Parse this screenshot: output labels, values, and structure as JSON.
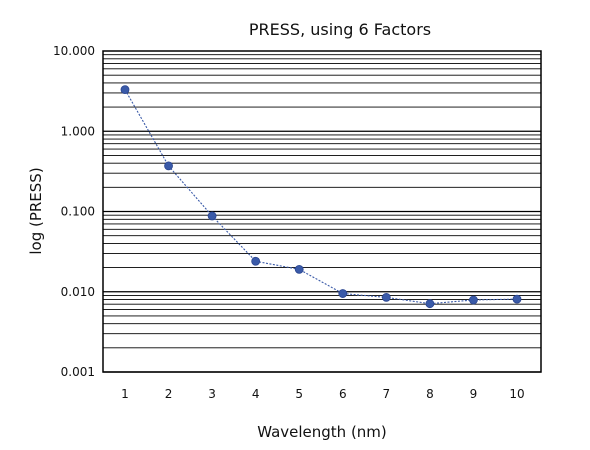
{
  "chart_data": {
    "type": "line",
    "title": "PRESS, using 6 Factors",
    "xlabel": "Wavelength (nm)",
    "ylabel": "log (PRESS)",
    "x": [
      1,
      2,
      3,
      4,
      5,
      6,
      7,
      8,
      9,
      10
    ],
    "x_tick_labels": [
      "1",
      "2",
      "3",
      "4",
      "5",
      "6",
      "7",
      "8",
      "9",
      "10"
    ],
    "y_scale": "log",
    "ylim": [
      0.001,
      10
    ],
    "y_tick_values": [
      0.001,
      0.01,
      0.1,
      1,
      10
    ],
    "y_tick_labels": [
      "0.001",
      "0.010",
      "0.100",
      "1.000",
      "10.000"
    ],
    "grid": true,
    "series": [
      {
        "values": [
          3.3,
          0.37,
          0.088,
          0.024,
          0.019,
          0.0095,
          0.0085,
          0.0071,
          0.0079,
          0.0081
        ],
        "color": "#3a5aa8"
      }
    ]
  }
}
